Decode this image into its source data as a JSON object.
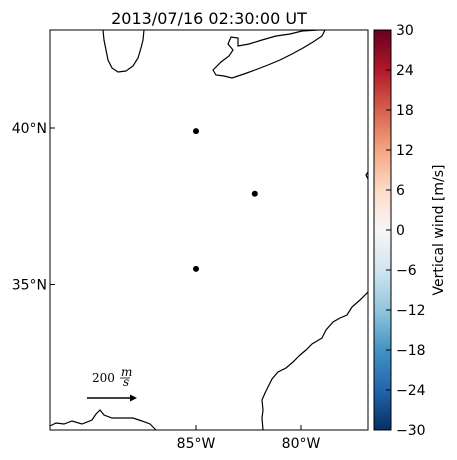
{
  "title": "2013/07/16 02:30:00 UT",
  "lat_ticks": [
    {
      "label": "40°N",
      "lat": 40
    },
    {
      "label": "35°N",
      "lat": 35
    }
  ],
  "lon_ticks": [
    {
      "label": "85°W",
      "lon": -85
    },
    {
      "label": "80°W",
      "lon": -80
    }
  ],
  "stations": [
    {
      "lon": -85.0,
      "lat": 39.9
    },
    {
      "lon": -82.2,
      "lat": 37.9
    },
    {
      "lon": -85.0,
      "lat": 35.5
    }
  ],
  "reference_arrow": {
    "label_value": "200",
    "label_unit_num": "m",
    "label_unit_den": "s"
  },
  "colorbar": {
    "label": "Vertical wind [m/s]",
    "min": -30,
    "max": 30,
    "ticks": [
      "30",
      "24",
      "18",
      "12",
      "6",
      "0",
      "−6",
      "−12",
      "−18",
      "−24",
      "−30"
    ],
    "colormap": "RdBu_r",
    "colors": [
      "#053061",
      "#2166ac",
      "#4393c3",
      "#92c5de",
      "#d1e5f0",
      "#f7f7f7",
      "#fddbc7",
      "#f4a582",
      "#d6604d",
      "#b2182b",
      "#67001f"
    ]
  }
}
